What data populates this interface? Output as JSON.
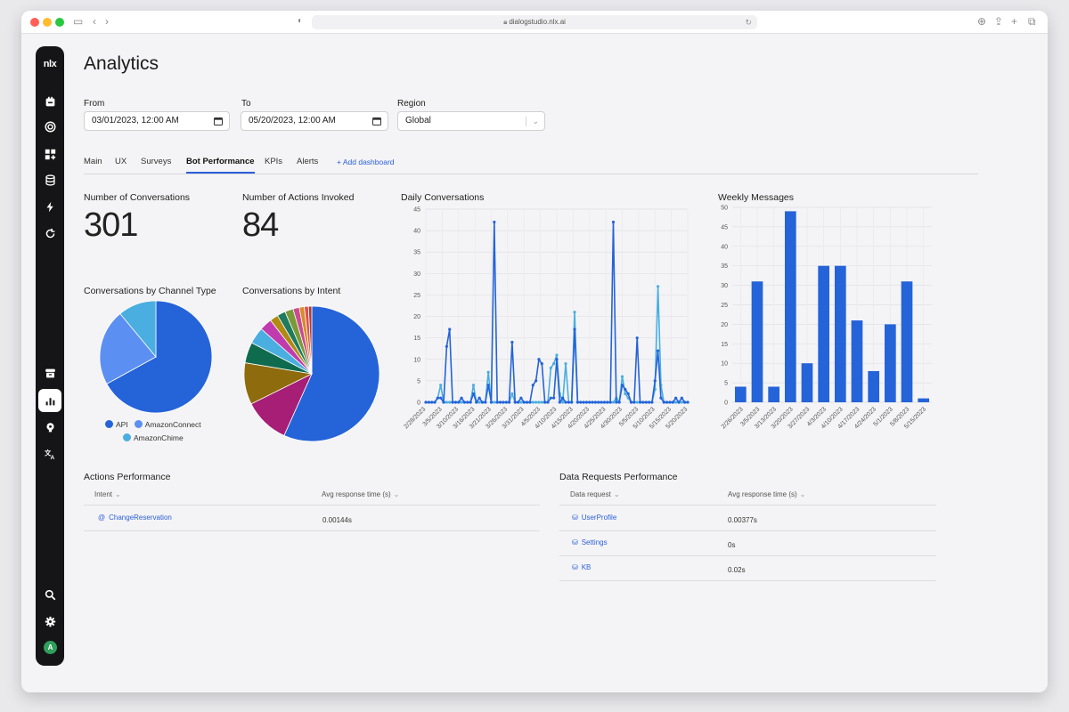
{
  "browser": {
    "url": "dialogstudio.nlx.ai"
  },
  "sidebar": {
    "logo": "nlx",
    "avatar_initial": "A"
  },
  "page": {
    "title": "Analytics"
  },
  "filters": {
    "from_label": "From",
    "from_value": "03/01/2023, 12:00 AM",
    "to_label": "To",
    "to_value": "05/20/2023, 12:00 AM",
    "region_label": "Region",
    "region_value": "Global"
  },
  "tabs": {
    "items": [
      "Main",
      "UX",
      "Surveys",
      "Bot Performance",
      "KPIs",
      "Alerts"
    ],
    "active": "Bot Performance",
    "add_label": "+ Add dashboard"
  },
  "stats": {
    "conversations_title": "Number of Conversations",
    "conversations_value": "301",
    "actions_title": "Number of Actions Invoked",
    "actions_value": "84"
  },
  "chart_data": [
    {
      "type": "pie",
      "title": "Conversations by Channel Type",
      "labels": [
        "API",
        "AmazonConnect",
        "AmazonChime"
      ],
      "values": [
        67,
        22,
        11
      ],
      "colors": [
        "#2563d9",
        "#5b8ff2",
        "#4aaee0"
      ]
    },
    {
      "type": "pie",
      "title": "Conversations by Intent",
      "values": [
        57,
        11,
        10,
        5,
        4,
        3,
        2,
        2,
        2,
        1.5,
        1.2,
        1,
        0.8
      ],
      "colors": [
        "#2563d9",
        "#a61e76",
        "#8e6b0c",
        "#0f6b4e",
        "#4aaee0",
        "#c03cae",
        "#b08a12",
        "#1f7a5e",
        "#7a9a3a",
        "#cc4b8e",
        "#d88b2a",
        "#d9534f",
        "#b03a3a"
      ]
    },
    {
      "type": "line",
      "title": "Daily Conversations",
      "ylim": [
        0,
        45
      ],
      "yticks": [
        0,
        5,
        10,
        15,
        20,
        25,
        30,
        35,
        40,
        45
      ],
      "xtick_labels": [
        "2/28/2023",
        "3/5/2023",
        "3/10/2023",
        "3/16/2023",
        "3/21/2023",
        "3/26/2023",
        "3/31/2023",
        "4/5/2023",
        "4/10/2023",
        "4/15/2023",
        "4/20/2023",
        "4/25/2023",
        "4/30/2023",
        "5/5/2023",
        "5/10/2023",
        "5/15/2023",
        "5/20/2023"
      ],
      "series": [
        {
          "color": "#2563d9",
          "values": [
            0,
            0,
            0,
            0,
            1,
            1,
            0,
            13,
            17,
            0,
            0,
            0,
            1,
            0,
            0,
            0,
            2,
            0,
            1,
            0,
            0,
            4,
            0,
            42,
            0,
            0,
            0,
            0,
            0,
            14,
            0,
            0,
            1,
            0,
            0,
            0,
            4,
            5,
            10,
            9,
            0,
            0,
            1,
            1,
            10,
            0,
            1,
            0,
            0,
            0,
            17,
            0,
            0,
            0,
            0,
            0,
            0,
            0,
            0,
            0,
            0,
            0,
            0,
            42,
            0,
            0,
            4,
            3,
            2,
            0,
            0,
            15,
            0,
            0,
            0,
            0,
            0,
            5,
            12,
            1,
            0,
            0,
            0,
            0,
            1,
            0,
            1,
            0,
            0
          ]
        },
        {
          "color": "#4aaee0",
          "values": [
            0,
            0,
            0,
            0,
            1,
            4,
            0,
            0,
            0,
            0,
            0,
            0,
            0,
            0,
            0,
            0,
            4,
            0,
            0,
            0,
            0,
            7,
            0,
            0,
            0,
            0,
            0,
            0,
            0,
            2,
            0,
            0,
            0,
            0,
            0,
            0,
            0,
            0,
            0,
            0,
            0,
            0,
            8,
            9,
            11,
            2,
            0,
            9,
            0,
            0,
            21,
            0,
            0,
            0,
            0,
            0,
            0,
            0,
            0,
            0,
            0,
            0,
            0,
            0,
            1,
            0,
            6,
            2,
            1,
            0,
            0,
            0,
            0,
            0,
            0,
            0,
            0,
            3,
            27,
            4,
            0,
            0,
            0,
            0,
            0,
            0,
            0,
            0,
            0
          ]
        }
      ]
    },
    {
      "type": "bar",
      "title": "Weekly Messages",
      "categories": [
        "2/26/2023",
        "3/5/2023",
        "3/13/2023",
        "3/20/2023",
        "3/27/2023",
        "4/3/2023",
        "4/10/2023",
        "4/17/2023",
        "4/24/2023",
        "5/1/2023",
        "5/8/2023",
        "5/15/2023"
      ],
      "values": [
        4,
        31,
        4,
        49,
        10,
        35,
        35,
        21,
        8,
        20,
        31,
        1
      ],
      "ylim": [
        0,
        50
      ],
      "yticks": [
        0,
        5,
        10,
        15,
        20,
        25,
        30,
        35,
        40,
        45,
        50
      ],
      "color": "#2563d9"
    }
  ],
  "actions_table": {
    "title": "Actions Performance",
    "col1": "Intent",
    "col2": "Avg response time (s)",
    "rows": [
      {
        "name": "ChangeReservation",
        "time": "0.00144s"
      }
    ]
  },
  "data_table": {
    "title": "Data Requests Performance",
    "col1": "Data request",
    "col2": "Avg response time (s)",
    "rows": [
      {
        "name": "UserProfile",
        "time": "0.00377s"
      },
      {
        "name": "Settings",
        "time": "0s"
      },
      {
        "name": "KB",
        "time": "0.02s"
      }
    ]
  }
}
